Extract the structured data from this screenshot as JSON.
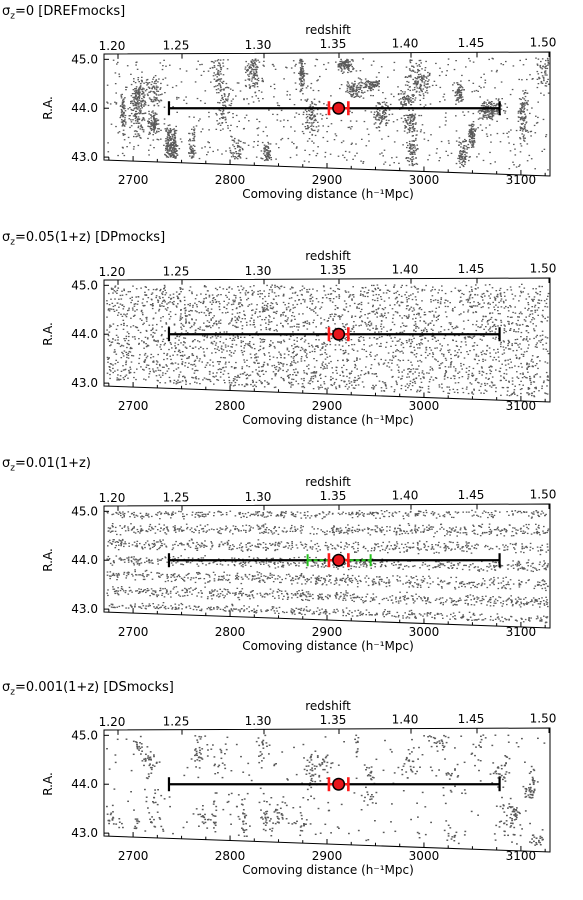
{
  "chart_data": [
    {
      "type": "scatter",
      "title": "σ₂=0 [DREFmocks]",
      "title_sigma": "σ",
      "title_sub": "z",
      "title_rest": "=0 [DREFmocks]",
      "density": "clustered-dense",
      "xlabel": "Comoving distance (h⁻¹Mpc)",
      "top_xlabel": "redshift",
      "ylabel": "R.A.",
      "x_ticks": [
        "2700",
        "2800",
        "2900",
        "3000",
        "3100"
      ],
      "top_ticks": [
        "1.20",
        "1.25",
        "1.30",
        "1.35",
        "1.40",
        "1.45",
        "1.50"
      ],
      "y_ticks": [
        "45.0",
        "44.0",
        "43.0"
      ],
      "xlim": [
        2670,
        3130
      ],
      "ylim": [
        42.9,
        45.15
      ],
      "bar": {
        "from": 2737,
        "to": 3078,
        "y": 44.0
      },
      "center": {
        "x": 2912,
        "y": 44.0
      },
      "red_error": [
        2902,
        2922
      ],
      "green_error": null
    },
    {
      "type": "scatter",
      "title_sigma": "σ",
      "title_sub": "z",
      "title_rest": "=0.05(1+z) [DPmocks]",
      "density": "uniform-dense",
      "xlabel": "Comoving distance (h⁻¹Mpc)",
      "top_xlabel": "redshift",
      "ylabel": "R.A.",
      "x_ticks": [
        "2700",
        "2800",
        "2900",
        "3000",
        "3100"
      ],
      "top_ticks": [
        "1.20",
        "1.25",
        "1.30",
        "1.35",
        "1.40",
        "1.45",
        "1.50"
      ],
      "y_ticks": [
        "45.0",
        "44.0",
        "43.0"
      ],
      "xlim": [
        2670,
        3130
      ],
      "ylim": [
        42.9,
        45.15
      ],
      "bar": {
        "from": 2737,
        "to": 3078,
        "y": 44.0
      },
      "center": {
        "x": 2912,
        "y": 44.0
      },
      "red_error": [
        2902,
        2922
      ],
      "green_error": null
    },
    {
      "type": "scatter",
      "title_sigma": "σ",
      "title_sub": "z",
      "title_rest": "=0.01(1+z)",
      "density": "striped-dense",
      "xlabel": "Comoving distance (h⁻¹Mpc)",
      "top_xlabel": "redshift",
      "ylabel": "R.A.",
      "x_ticks": [
        "2700",
        "2800",
        "2900",
        "3000",
        "3100"
      ],
      "top_ticks": [
        "1.20",
        "1.25",
        "1.30",
        "1.35",
        "1.40",
        "1.45",
        "1.50"
      ],
      "y_ticks": [
        "45.0",
        "44.0",
        "43.0"
      ],
      "xlim": [
        2670,
        3130
      ],
      "ylim": [
        42.9,
        45.15
      ],
      "bar": {
        "from": 2737,
        "to": 3078,
        "y": 44.0
      },
      "center": {
        "x": 2912,
        "y": 44.0
      },
      "red_error": [
        2902,
        2922
      ],
      "green_error": [
        2880,
        2945
      ]
    },
    {
      "type": "scatter",
      "title_sigma": "σ",
      "title_sub": "z",
      "title_rest": "=0.001(1+z) [DSmocks]",
      "density": "clustered-sparse",
      "xlabel": "Comoving distance (h⁻¹Mpc)",
      "top_xlabel": "redshift",
      "ylabel": "R.A.",
      "x_ticks": [
        "2700",
        "2800",
        "2900",
        "3000",
        "3100"
      ],
      "top_ticks": [
        "1.20",
        "1.25",
        "1.30",
        "1.35",
        "1.40",
        "1.45",
        "1.50"
      ],
      "y_ticks": [
        "45.0",
        "44.0",
        "43.0"
      ],
      "xlim": [
        2670,
        3130
      ],
      "ylim": [
        42.9,
        45.15
      ],
      "bar": {
        "from": 2737,
        "to": 3078,
        "y": 44.0
      },
      "center": {
        "x": 2912,
        "y": 44.0
      },
      "red_error": [
        2902,
        2922
      ],
      "green_error": null
    }
  ]
}
